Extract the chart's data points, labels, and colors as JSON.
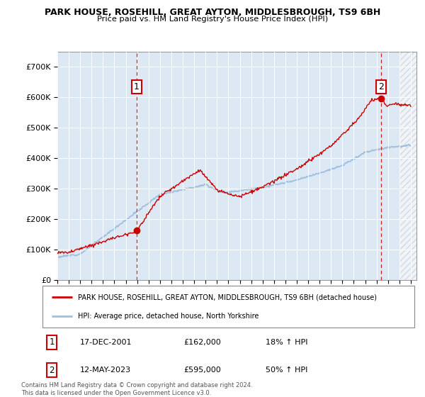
{
  "title1": "PARK HOUSE, ROSEHILL, GREAT AYTON, MIDDLESBROUGH, TS9 6BH",
  "title2": "Price paid vs. HM Land Registry's House Price Index (HPI)",
  "bg_color": "#dce9f5",
  "hpi_color": "#a0bedd",
  "price_color": "#cc0000",
  "sale1_date": "17-DEC-2001",
  "sale1_price": 162000,
  "sale1_label": "18% ↑ HPI",
  "sale2_date": "12-MAY-2023",
  "sale2_price": 595000,
  "sale2_label": "50% ↑ HPI",
  "legend1": "PARK HOUSE, ROSEHILL, GREAT AYTON, MIDDLESBROUGH, TS9 6BH (detached house)",
  "legend2": "HPI: Average price, detached house, North Yorkshire",
  "footer": "Contains HM Land Registry data © Crown copyright and database right 2024.\nThis data is licensed under the Open Government Licence v3.0.",
  "ylim_max": 750000,
  "sale1_x": 2001.958,
  "sale2_x": 2023.375
}
